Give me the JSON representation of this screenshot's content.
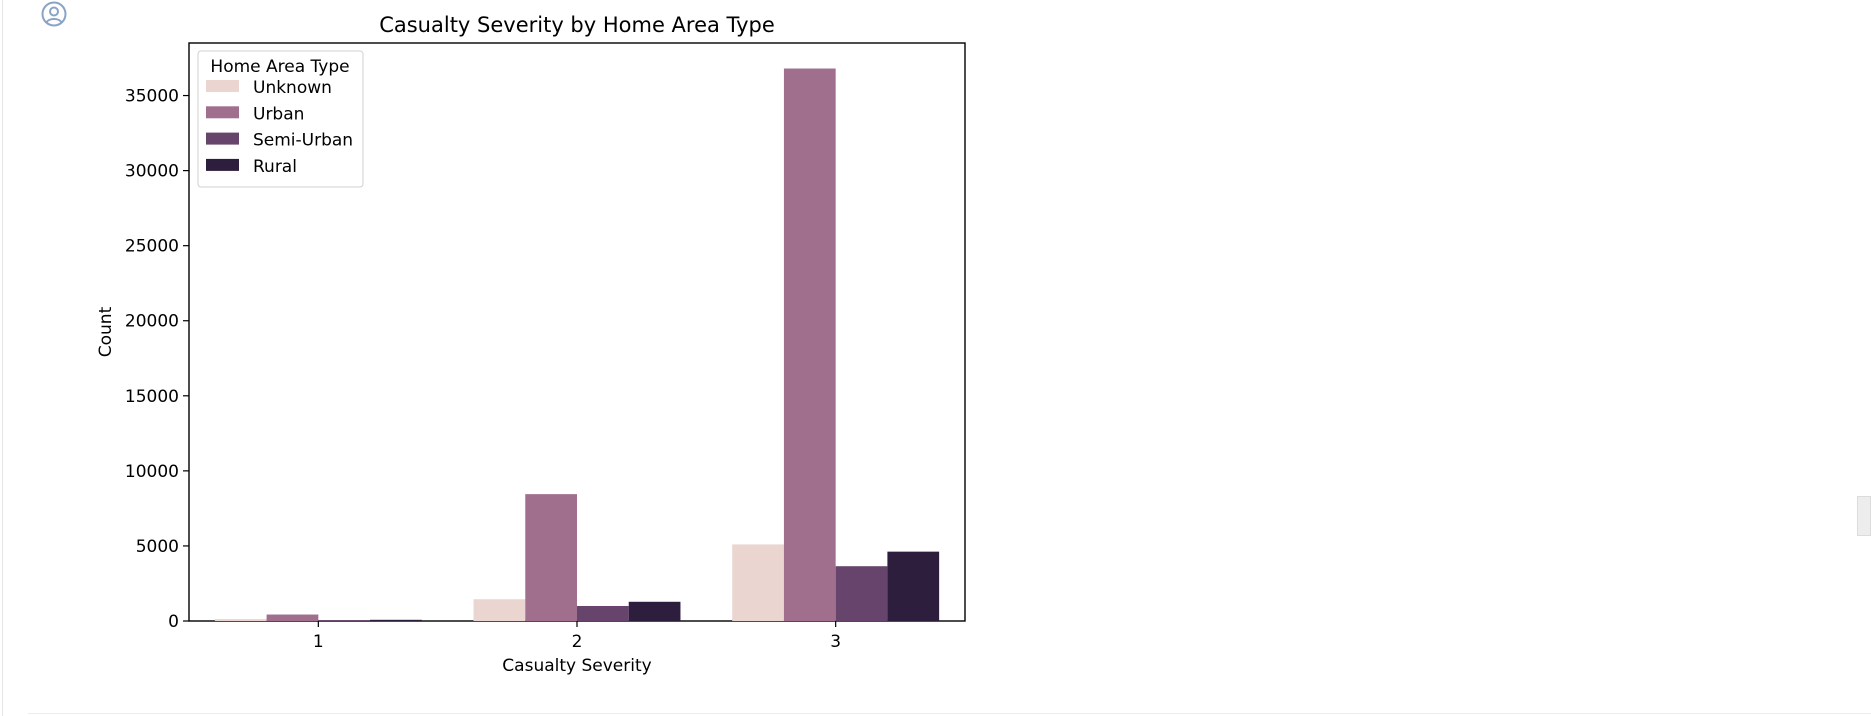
{
  "cell": {
    "prompt_icon": "user-circle-icon"
  },
  "chart_data": {
    "type": "bar",
    "title": "Casualty Severity by Home Area Type",
    "xlabel": "Casualty Severity",
    "ylabel": "Count",
    "categories": [
      "1",
      "2",
      "3"
    ],
    "ylim": [
      0,
      38500
    ],
    "yticks": [
      0,
      5000,
      10000,
      15000,
      20000,
      25000,
      30000,
      35000
    ],
    "ytick_labels": [
      "0",
      "5000",
      "10000",
      "15000",
      "20000",
      "25000",
      "30000",
      "35000"
    ],
    "legend": {
      "title": "Home Area Type",
      "placement": "top-left"
    },
    "grid": false,
    "series": [
      {
        "name": "Unknown",
        "color": "#ead5d0",
        "values": [
          130,
          1450,
          5100
        ]
      },
      {
        "name": "Urban",
        "color": "#a06f8d",
        "values": [
          430,
          8450,
          36800
        ]
      },
      {
        "name": "Semi-Urban",
        "color": "#67446c",
        "values": [
          60,
          1000,
          3650
        ]
      },
      {
        "name": "Rural",
        "color": "#2d1e3e",
        "values": [
          80,
          1280,
          4620
        ]
      }
    ]
  }
}
